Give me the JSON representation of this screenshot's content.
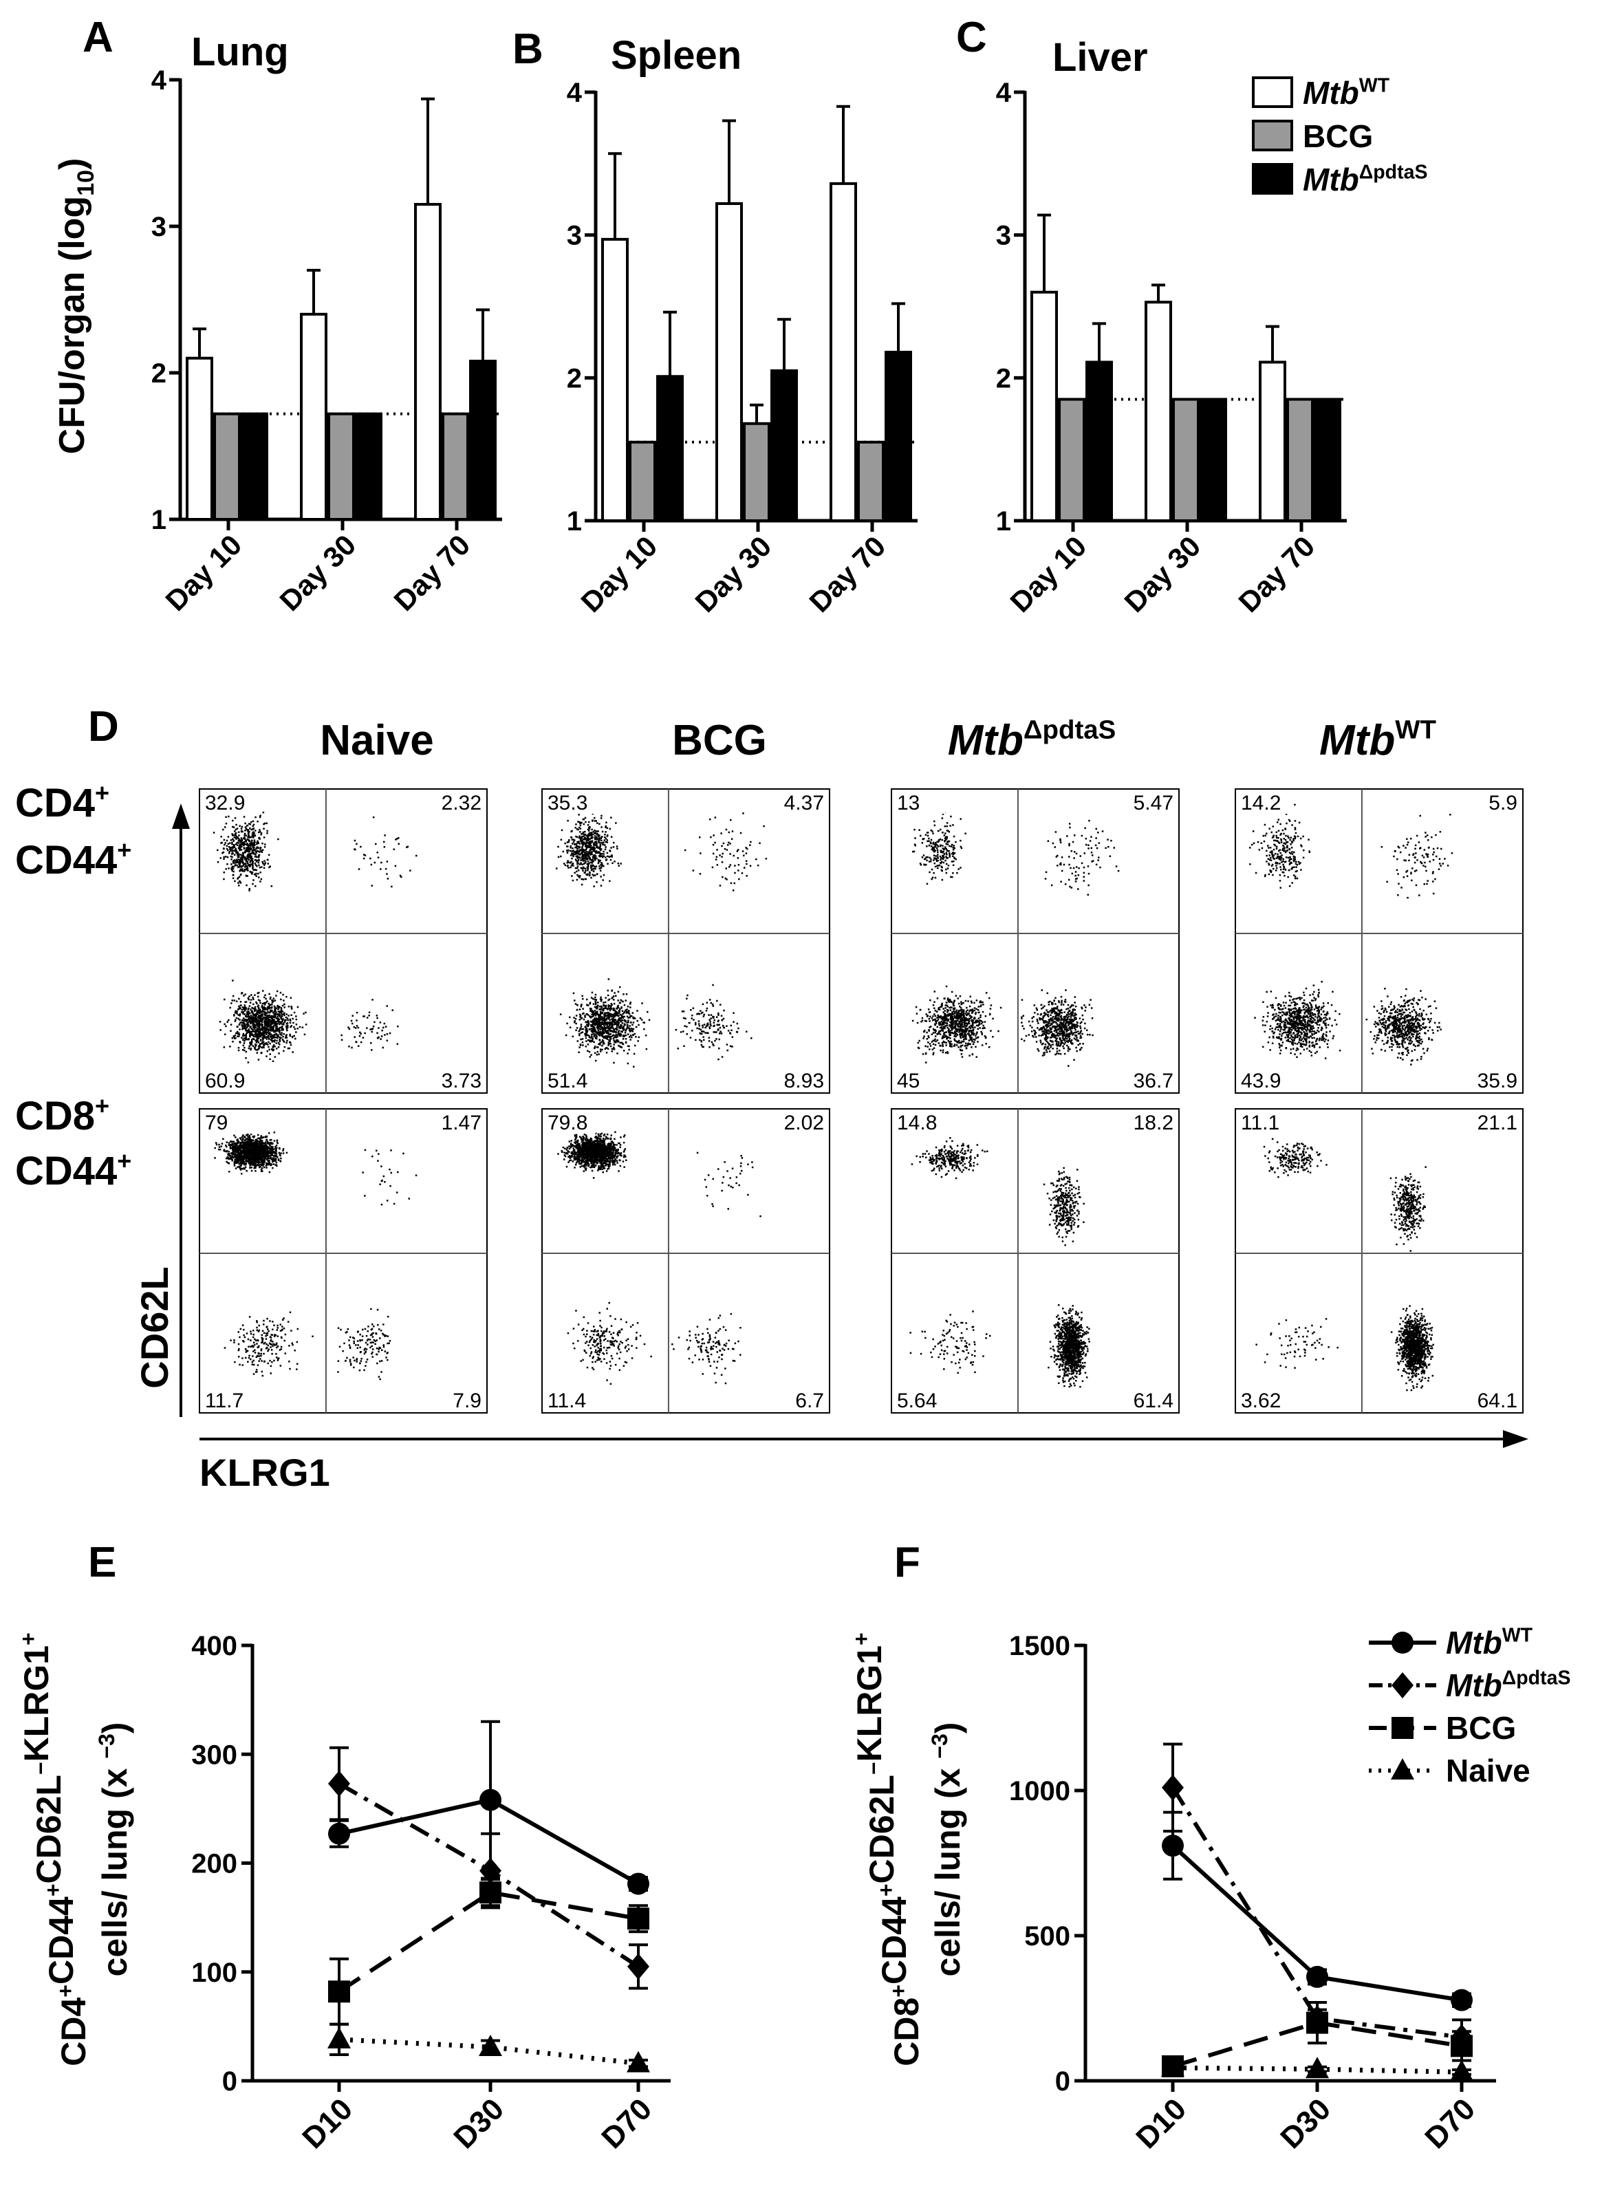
{
  "figure": {
    "legend_abc": [
      {
        "label": "Mtb",
        "sup": "WT",
        "fill": "#ffffff"
      },
      {
        "label": "BCG",
        "sup": "",
        "fill": "#999999"
      },
      {
        "label": "Mtb",
        "sup": "ΔpdtaS",
        "fill": "#000000"
      }
    ],
    "shared_ylabel_abc": "CFU/organ (log10)",
    "panel_D": {
      "letter": "D",
      "columns": [
        {
          "label": "Naive",
          "sup": ""
        },
        {
          "label": "BCG",
          "sup": ""
        },
        {
          "label": "Mtb",
          "sup": "ΔpdtaS"
        },
        {
          "label": "Mtb",
          "sup": "WT"
        }
      ],
      "rows": [
        {
          "line1": "CD4",
          "line2": "CD44"
        },
        {
          "line1": "CD8",
          "line2": "CD44"
        }
      ],
      "ylabel": "CD62L",
      "xlabel": "KLRG1",
      "quadrants": [
        [
          [
            "32.9",
            "2.32",
            "60.9",
            "3.73"
          ],
          [
            "35.3",
            "4.37",
            "51.4",
            "8.93"
          ],
          [
            "13",
            "5.47",
            "45",
            "36.7"
          ],
          [
            "14.2",
            "5.9",
            "43.9",
            "35.9"
          ]
        ],
        [
          [
            "79",
            "1.47",
            "11.7",
            "7.9"
          ],
          [
            "79.8",
            "2.02",
            "11.4",
            "6.7"
          ],
          [
            "14.8",
            "18.2",
            "5.64",
            "61.4"
          ],
          [
            "11.1",
            "21.1",
            "3.62",
            "64.1"
          ]
        ]
      ]
    },
    "legend_ef": [
      {
        "label": "Mtb",
        "sup": "WT",
        "marker": "circle"
      },
      {
        "label": "Mtb",
        "sup": "ΔpdtaS",
        "marker": "diamond"
      },
      {
        "label": "BCG",
        "sup": "",
        "marker": "square"
      },
      {
        "label": "Naive",
        "sup": "",
        "marker": "triangle"
      }
    ]
  },
  "chart_data": [
    {
      "panel": "A",
      "title": "Lung",
      "type": "bar",
      "categories": [
        "Day 10",
        "Day 30",
        "Day 70"
      ],
      "ylabel": "CFU/organ (log10)",
      "ylim": [
        1,
        4
      ],
      "yticks": [
        1,
        2,
        3,
        4
      ],
      "detection_limit": 1.72,
      "series": [
        {
          "name": "MtbWT",
          "values": [
            2.1,
            2.4,
            3.15
          ],
          "errors": [
            0.2,
            0.3,
            0.72
          ]
        },
        {
          "name": "BCG",
          "values": [
            1.72,
            1.72,
            1.72
          ],
          "errors": [
            0,
            0,
            0
          ]
        },
        {
          "name": "MtbΔpdtaS",
          "values": [
            1.72,
            1.72,
            2.08
          ],
          "errors": [
            0,
            0,
            0.35
          ]
        }
      ]
    },
    {
      "panel": "B",
      "title": "Spleen",
      "type": "bar",
      "categories": [
        "Day 10",
        "Day 30",
        "Day 70"
      ],
      "ylabel": "",
      "ylim": [
        1,
        4
      ],
      "yticks": [
        1,
        2,
        3,
        4
      ],
      "detection_limit": 1.55,
      "series": [
        {
          "name": "MtbWT",
          "values": [
            2.97,
            3.22,
            3.36
          ],
          "errors": [
            0.6,
            0.58,
            0.54
          ]
        },
        {
          "name": "BCG",
          "values": [
            1.55,
            1.68,
            1.55
          ],
          "errors": [
            0,
            0.13,
            0
          ]
        },
        {
          "name": "MtbΔpdtaS",
          "values": [
            2.01,
            2.05,
            2.18
          ],
          "errors": [
            0.45,
            0.36,
            0.34
          ]
        }
      ]
    },
    {
      "panel": "C",
      "title": "Liver",
      "type": "bar",
      "categories": [
        "Day 10",
        "Day 30",
        "Day 70"
      ],
      "ylabel": "",
      "ylim": [
        1,
        4
      ],
      "yticks": [
        1,
        2,
        3,
        4
      ],
      "detection_limit": 1.85,
      "series": [
        {
          "name": "MtbWT",
          "values": [
            2.6,
            2.53,
            2.11
          ],
          "errors": [
            0.54,
            0.12,
            0.25
          ]
        },
        {
          "name": "BCG",
          "values": [
            1.85,
            1.85,
            1.85
          ],
          "errors": [
            0,
            0,
            0
          ]
        },
        {
          "name": "MtbΔpdtaS",
          "values": [
            2.11,
            1.85,
            1.85
          ],
          "errors": [
            0.27,
            0,
            0
          ]
        }
      ]
    },
    {
      "panel": "E",
      "type": "line",
      "x": [
        "D10",
        "D30",
        "D70"
      ],
      "ylabel": [
        "CD4+CD44+CD62L−KLRG1+",
        "cells/ lung (x 10−3)"
      ],
      "ylim": [
        0,
        400
      ],
      "yticks": [
        0,
        100,
        200,
        300,
        400
      ],
      "series": [
        {
          "name": "MtbWT",
          "values": [
            227,
            258,
            181
          ],
          "errors": [
            12,
            72,
            6
          ]
        },
        {
          "name": "MtbΔpdtaS",
          "values": [
            273,
            193,
            105
          ],
          "errors": [
            33,
            34,
            20
          ]
        },
        {
          "name": "BCG",
          "values": [
            82,
            173,
            149
          ],
          "errors": [
            30,
            12,
            12
          ]
        },
        {
          "name": "Naive",
          "values": [
            38,
            31,
            16
          ],
          "errors": [
            14,
            6,
            3
          ]
        }
      ]
    },
    {
      "panel": "F",
      "type": "line",
      "x": [
        "D10",
        "D30",
        "D70"
      ],
      "ylabel": [
        "CD8+CD44+CD62L−KLRG1+",
        "cells/ lung (x 10−3)"
      ],
      "ylim": [
        0,
        1500
      ],
      "yticks": [
        0,
        500,
        1000,
        1500
      ],
      "series": [
        {
          "name": "MtbWT",
          "values": [
            810,
            358,
            278
          ],
          "errors": [
            115,
            25,
            22
          ]
        },
        {
          "name": "MtbΔpdtaS",
          "values": [
            1010,
            215,
            150
          ],
          "errors": [
            150,
            30,
            60
          ]
        },
        {
          "name": "BCG",
          "values": [
            50,
            200,
            120
          ],
          "errors": [
            15,
            70,
            50
          ]
        },
        {
          "name": "Naive",
          "values": [
            45,
            40,
            30
          ],
          "errors": [
            10,
            8,
            8
          ]
        }
      ]
    }
  ]
}
